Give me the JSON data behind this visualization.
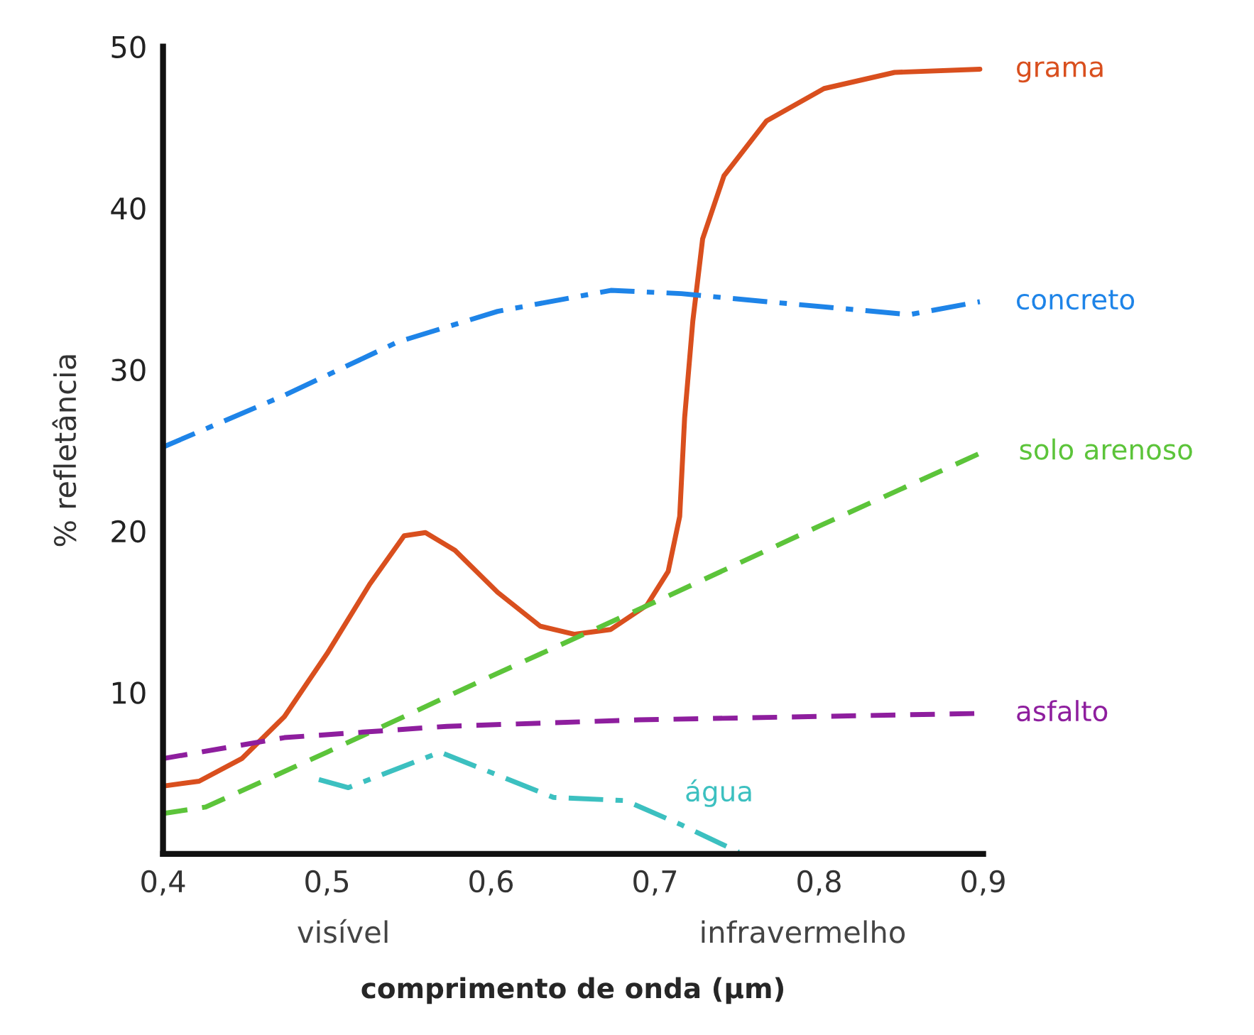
{
  "chart_data": {
    "type": "line",
    "xlabel": "comprimento de onda (µm)",
    "ylabel": "% refletância",
    "xlim": [
      0.4,
      0.9
    ],
    "ylim": [
      0,
      50
    ],
    "xticks": [
      {
        "value": 0.4,
        "label": "0,4"
      },
      {
        "value": 0.5,
        "label": "0,5"
      },
      {
        "value": 0.6,
        "label": "0,6"
      },
      {
        "value": 0.7,
        "label": "0,7"
      },
      {
        "value": 0.8,
        "label": "0,8"
      },
      {
        "value": 0.9,
        "label": "0,9"
      }
    ],
    "yticks": [
      10,
      20,
      30,
      40,
      50
    ],
    "grid": false,
    "legend": false,
    "annotations": [
      "visível",
      "infravermelho"
    ],
    "series": [
      {
        "name": "grama",
        "color": "#d94f1e",
        "line_style": "solid",
        "x": [
          0.4,
          0.422,
          0.448,
          0.474,
          0.5,
          0.526,
          0.547,
          0.56,
          0.578,
          0.604,
          0.63,
          0.651,
          0.673,
          0.695,
          0.708,
          0.715,
          0.718,
          0.723,
          0.729,
          0.742,
          0.768,
          0.803,
          0.846,
          0.898
        ],
        "values": [
          4.2,
          4.5,
          5.9,
          8.5,
          12.4,
          16.7,
          19.7,
          19.9,
          18.8,
          16.2,
          14.1,
          13.6,
          13.9,
          15.4,
          17.5,
          20.9,
          27,
          33,
          38.1,
          42,
          45.4,
          47.4,
          48.4,
          48.6
        ]
      },
      {
        "name": "concreto",
        "color": "#1e84e8",
        "line_style": "dashdot",
        "x": [
          0.4,
          0.474,
          0.543,
          0.604,
          0.673,
          0.716,
          0.768,
          0.855,
          0.898
        ],
        "values": [
          25.2,
          28.4,
          31.7,
          33.6,
          34.9,
          34.7,
          34.2,
          33.4,
          34.2
        ]
      },
      {
        "name": "solo arenoso",
        "color": "#5cc43a",
        "line_style": "dashed",
        "x": [
          0.4,
          0.426,
          0.5,
          0.6,
          0.7,
          0.8,
          0.9
        ],
        "values": [
          2.5,
          2.9,
          6.3,
          11.0,
          15.6,
          20.3,
          24.9
        ]
      },
      {
        "name": "asfalto",
        "color": "#8e1e9e",
        "line_style": "dashed",
        "x": [
          0.4,
          0.474,
          0.573,
          0.69,
          0.898
        ],
        "values": [
          5.9,
          7.2,
          7.9,
          8.3,
          8.7
        ]
      },
      {
        "name": "água",
        "color": "#3cc0c0",
        "line_style": "dashdot",
        "x": [
          0.495,
          0.513,
          0.569,
          0.638,
          0.682,
          0.716,
          0.751
        ],
        "values": [
          4.6,
          4.1,
          6.3,
          3.5,
          3.3,
          1.8,
          0.1
        ]
      }
    ]
  }
}
